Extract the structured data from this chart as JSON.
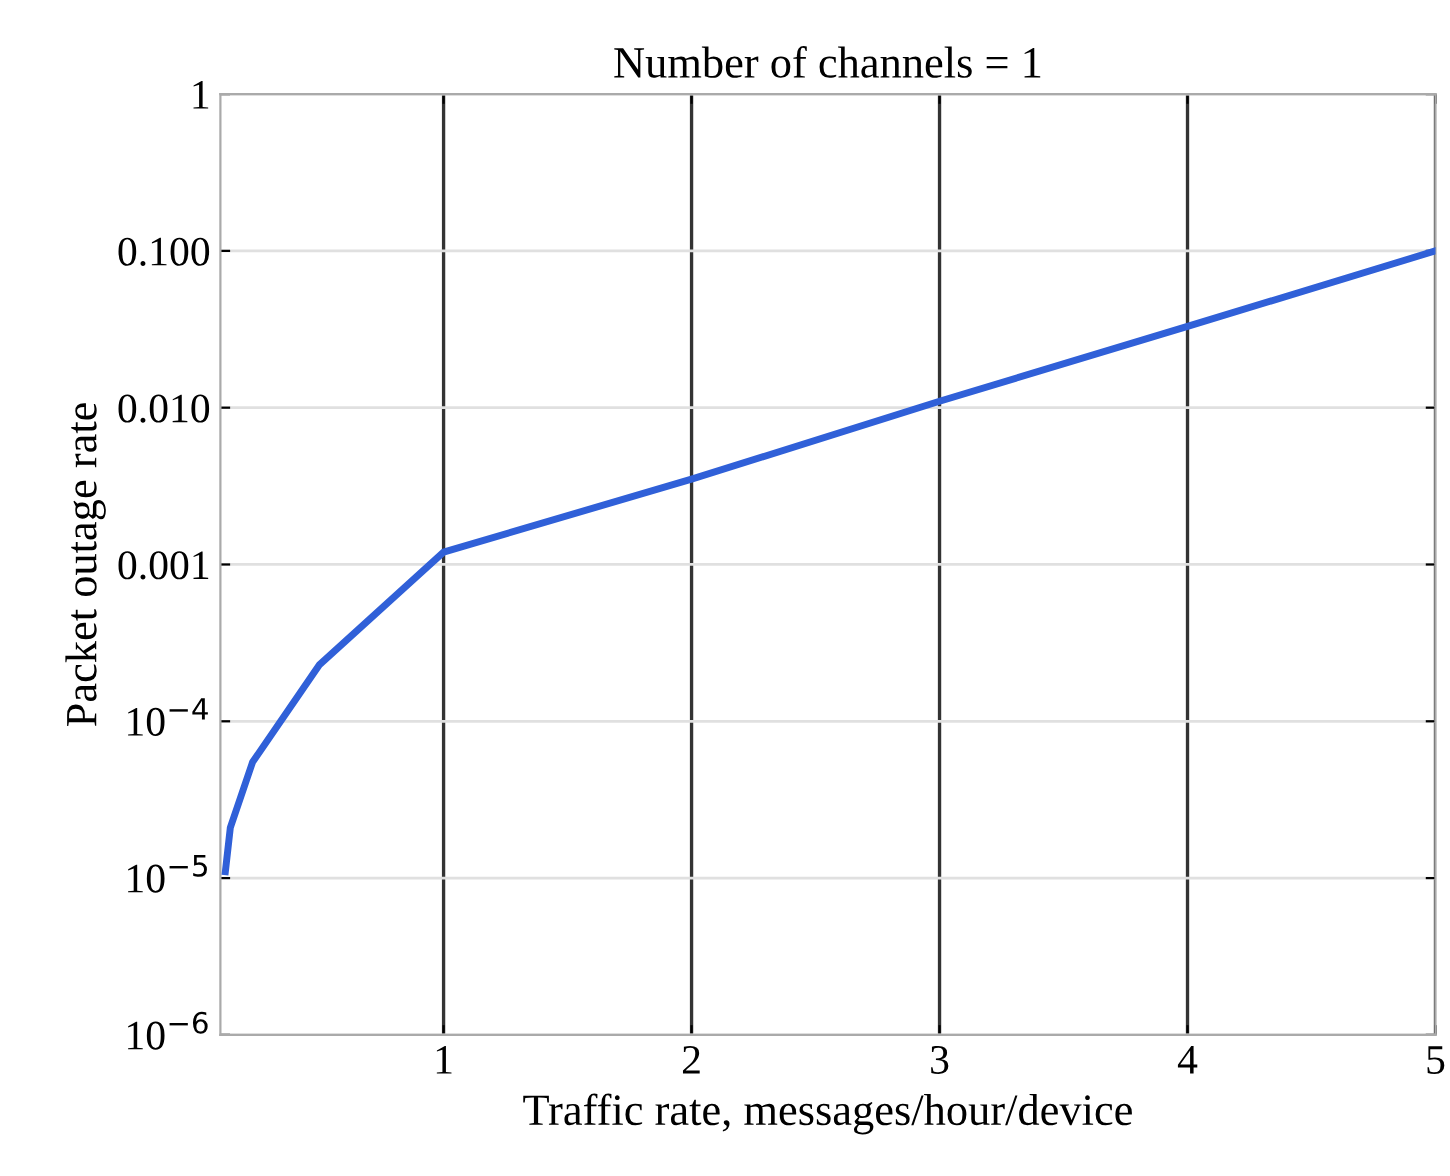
{
  "chart_data": {
    "type": "line",
    "title": "Number of channels = 1",
    "xlabel": "Traffic rate, messages/hour/device",
    "ylabel": "Packet outage rate",
    "x": [
      0.12,
      0.14,
      0.23,
      0.5,
      1,
      2,
      3,
      4,
      5
    ],
    "series": [
      {
        "color": "#3060d8",
        "values": [
          1.1e-05,
          2.1e-05,
          5.5e-05,
          0.00023,
          0.0012,
          0.0035,
          0.011,
          0.033,
          0.1
        ]
      }
    ],
    "log": "y",
    "xlim": [
      0.1,
      5
    ],
    "ylim": [
      1e-06,
      1
    ],
    "xticks": [
      1,
      2,
      3,
      4,
      5
    ],
    "yticks": [
      {
        "value": 1e-06,
        "label": "10$^{−6}$"
      },
      {
        "value": 1e-05,
        "label": "10$^{−5}$"
      },
      {
        "value": 0.0001,
        "label": "10$^{−4}$"
      },
      {
        "value": 0.001,
        "label": "0.001"
      },
      {
        "value": 0.01,
        "label": "0.010"
      },
      {
        "value": 0.1,
        "label": "0.100"
      },
      1
    ],
    "grid": true,
    "marker": "none",
    "line_style": "solid",
    "legend": false
  }
}
